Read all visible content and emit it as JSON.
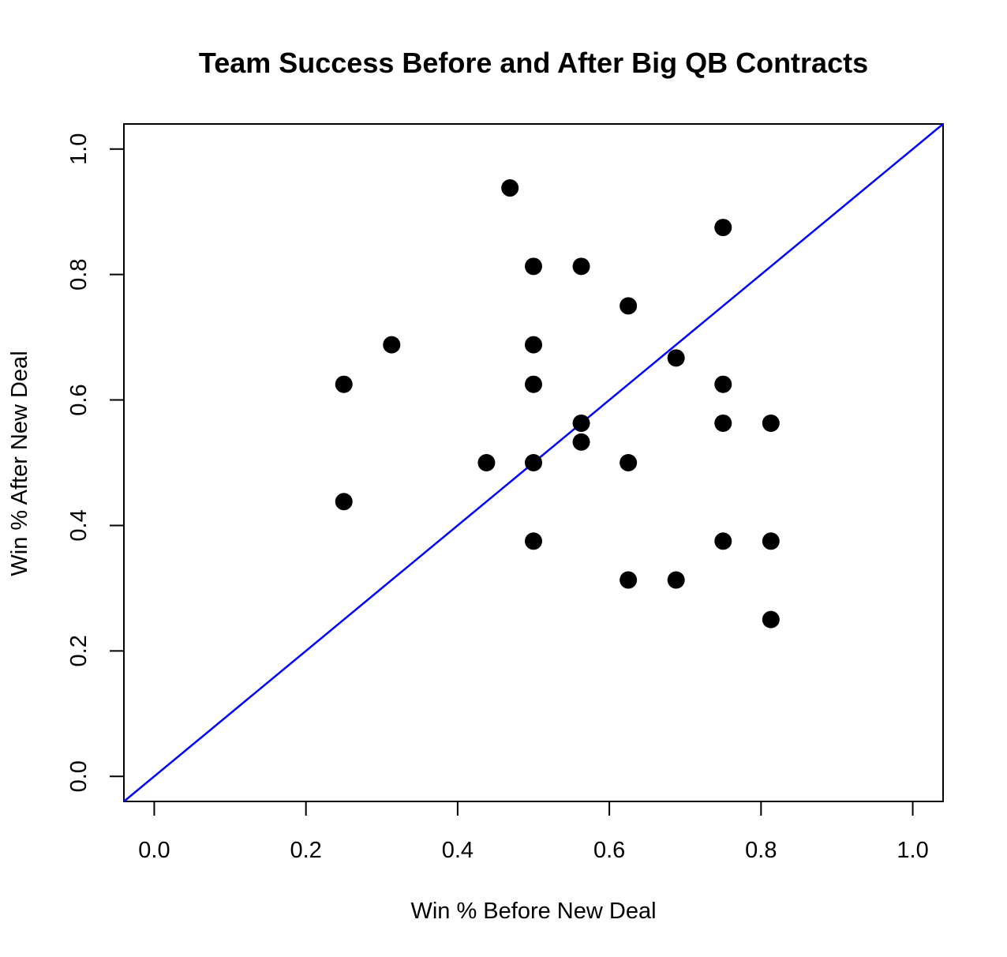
{
  "chart_data": {
    "type": "scatter",
    "title": "Team Success Before and After Big QB Contracts",
    "xlabel": "Win % Before New Deal",
    "ylabel": "Win % After New Deal",
    "xlim": [
      -0.04,
      1.04
    ],
    "ylim": [
      -0.04,
      1.04
    ],
    "x_ticks": [
      0.0,
      0.2,
      0.4,
      0.6,
      0.8,
      1.0
    ],
    "y_ticks": [
      0.0,
      0.2,
      0.4,
      0.6,
      0.8,
      1.0
    ],
    "x_tick_labels": [
      "0.0",
      "0.2",
      "0.4",
      "0.6",
      "0.8",
      "1.0"
    ],
    "y_tick_labels": [
      "0.0",
      "0.2",
      "0.4",
      "0.6",
      "0.8",
      "1.0"
    ],
    "grid": false,
    "point_color": "#000000",
    "reference_line": {
      "slope": 1,
      "intercept": 0,
      "color": "#0000ff"
    },
    "points": [
      {
        "x": 0.469,
        "y": 0.938
      },
      {
        "x": 0.75,
        "y": 0.875
      },
      {
        "x": 0.5,
        "y": 0.813
      },
      {
        "x": 0.563,
        "y": 0.813
      },
      {
        "x": 0.625,
        "y": 0.75
      },
      {
        "x": 0.313,
        "y": 0.688
      },
      {
        "x": 0.5,
        "y": 0.688
      },
      {
        "x": 0.688,
        "y": 0.667
      },
      {
        "x": 0.25,
        "y": 0.625
      },
      {
        "x": 0.5,
        "y": 0.625
      },
      {
        "x": 0.75,
        "y": 0.625
      },
      {
        "x": 0.563,
        "y": 0.563
      },
      {
        "x": 0.75,
        "y": 0.563
      },
      {
        "x": 0.813,
        "y": 0.563
      },
      {
        "x": 0.563,
        "y": 0.533
      },
      {
        "x": 0.438,
        "y": 0.5
      },
      {
        "x": 0.5,
        "y": 0.5
      },
      {
        "x": 0.625,
        "y": 0.5
      },
      {
        "x": 0.25,
        "y": 0.438
      },
      {
        "x": 0.5,
        "y": 0.375
      },
      {
        "x": 0.75,
        "y": 0.375
      },
      {
        "x": 0.813,
        "y": 0.375
      },
      {
        "x": 0.625,
        "y": 0.313
      },
      {
        "x": 0.688,
        "y": 0.313
      },
      {
        "x": 0.813,
        "y": 0.25
      }
    ]
  }
}
